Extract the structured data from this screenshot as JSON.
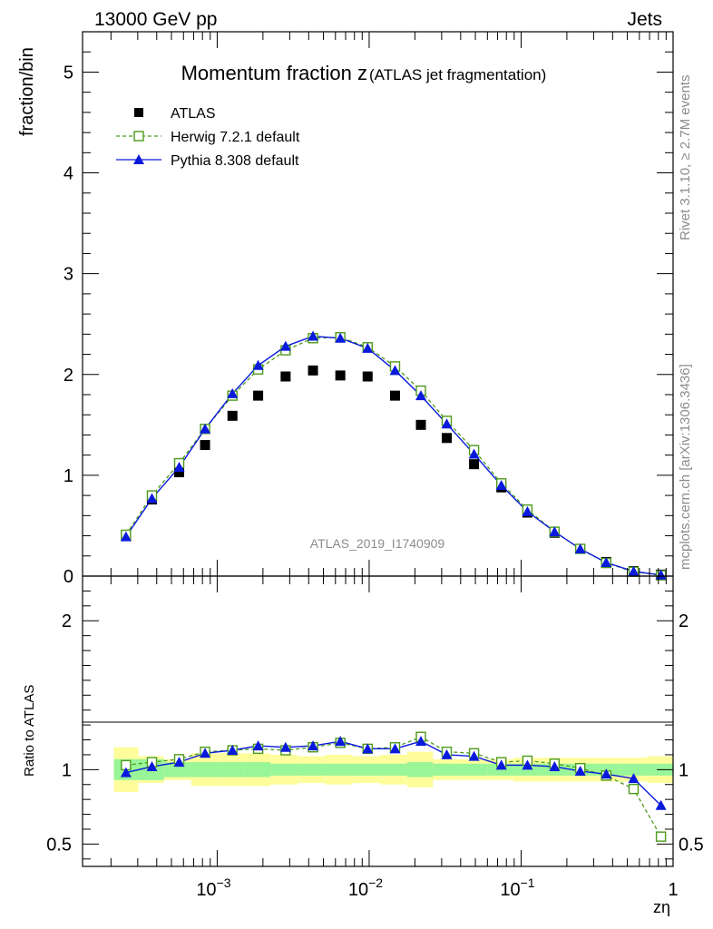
{
  "header": {
    "left": "13000 GeV pp",
    "right": "Jets"
  },
  "side": {
    "rivet": "Rivet 3.1.10, ≥ 2.7M events",
    "mcplots": "mcplots.cern.ch [arXiv:1306.3436]"
  },
  "chart_data": [
    {
      "type": "scatter",
      "title_main": "Momentum fraction z",
      "title_sub": "(ATLAS jet fragmentation)",
      "ylabel": "fraction/bin",
      "xlabel": "zη",
      "xscale": "log",
      "xlim": [
        0.00013,
        1.0
      ],
      "ylim": [
        0,
        5.4
      ],
      "yticks": [
        0,
        1,
        2,
        3,
        4,
        5
      ],
      "yticklabels": [
        "0",
        "1",
        "2",
        "3",
        "4",
        "5"
      ],
      "watermark": "ATLAS_2019_I1740909",
      "legend_position": "top-left",
      "x": [
        0.000251,
        0.000372,
        0.000562,
        0.000832,
        0.00126,
        0.00186,
        0.00282,
        0.00427,
        0.00646,
        0.00977,
        0.0148,
        0.0219,
        0.0324,
        0.049,
        0.0741,
        0.11,
        0.166,
        0.245,
        0.363,
        0.55,
        0.832
      ],
      "series": [
        {
          "name": "ATLAS",
          "style": "data",
          "color": "#000000",
          "values": [
            0.4,
            0.76,
            1.03,
            1.3,
            1.59,
            1.79,
            1.98,
            2.04,
            1.99,
            1.98,
            1.79,
            1.5,
            1.37,
            1.11,
            0.88,
            0.63,
            0.43,
            0.27,
            0.14,
            0.05,
            0.015
          ]
        },
        {
          "name": "Herwig 7.2.1 default",
          "style": "open-square-dashed",
          "color": "#4d9a1b",
          "values": [
            0.41,
            0.8,
            1.12,
            1.46,
            1.79,
            2.05,
            2.24,
            2.36,
            2.37,
            2.27,
            2.08,
            1.84,
            1.54,
            1.25,
            0.92,
            0.66,
            0.44,
            0.27,
            0.13,
            0.043,
            0.008
          ]
        },
        {
          "name": "Pythia 8.308 default",
          "style": "filled-triangle-solid",
          "color": "#0a1adc",
          "values": [
            0.39,
            0.77,
            1.08,
            1.46,
            1.81,
            2.09,
            2.28,
            2.38,
            2.36,
            2.26,
            2.04,
            1.79,
            1.51,
            1.21,
            0.9,
            0.64,
            0.44,
            0.27,
            0.135,
            0.047,
            0.011
          ]
        }
      ]
    },
    {
      "type": "line",
      "ylabel": "Ratio to ATLAS",
      "xlabel": "zη",
      "xscale": "log",
      "xlim": [
        0.00013,
        1.0
      ],
      "ylim": [
        0.35,
        2.3
      ],
      "yticks": [
        0.5,
        1,
        2
      ],
      "yticklabels": [
        "0.5",
        "1",
        "2"
      ],
      "xtick_labels": [
        "10^-3",
        "10^-2",
        "10^-1",
        "1"
      ],
      "x": [
        0.000251,
        0.000372,
        0.000562,
        0.000832,
        0.00126,
        0.00186,
        0.00282,
        0.00427,
        0.00646,
        0.00977,
        0.0148,
        0.0219,
        0.0324,
        0.049,
        0.0741,
        0.11,
        0.166,
        0.245,
        0.363,
        0.55,
        0.832
      ],
      "bins": [
        0.000209,
        0.000303,
        0.000447,
        0.000676,
        0.001,
        0.00151,
        0.00224,
        0.00339,
        0.00513,
        0.00776,
        0.0118,
        0.0178,
        0.0263,
        0.0398,
        0.0603,
        0.0891,
        0.135,
        0.204,
        0.302,
        0.447,
        0.676,
        1.0
      ],
      "band_inner": [
        0.07,
        0.07,
        0.05,
        0.05,
        0.05,
        0.05,
        0.04,
        0.04,
        0.04,
        0.04,
        0.04,
        0.05,
        0.04,
        0.04,
        0.04,
        0.04,
        0.04,
        0.04,
        0.04,
        0.04,
        0.04
      ],
      "band_outer": [
        0.15,
        0.09,
        0.07,
        0.11,
        0.11,
        0.11,
        0.1,
        0.09,
        0.1,
        0.09,
        0.1,
        0.12,
        0.07,
        0.07,
        0.07,
        0.08,
        0.08,
        0.08,
        0.08,
        0.08,
        0.09
      ],
      "series": [
        {
          "name": "Herwig 7.2.1 default",
          "color": "#4d9a1b",
          "values": [
            1.03,
            1.05,
            1.07,
            1.12,
            1.13,
            1.14,
            1.13,
            1.15,
            1.18,
            1.14,
            1.15,
            1.22,
            1.12,
            1.11,
            1.05,
            1.06,
            1.04,
            1.01,
            0.96,
            0.87,
            0.55
          ]
        },
        {
          "name": "Pythia 8.308 default",
          "color": "#0a1adc",
          "values": [
            0.98,
            1.02,
            1.05,
            1.11,
            1.13,
            1.16,
            1.15,
            1.16,
            1.19,
            1.14,
            1.14,
            1.19,
            1.1,
            1.09,
            1.03,
            1.03,
            1.02,
            0.99,
            0.97,
            0.94,
            0.76
          ]
        }
      ]
    }
  ]
}
